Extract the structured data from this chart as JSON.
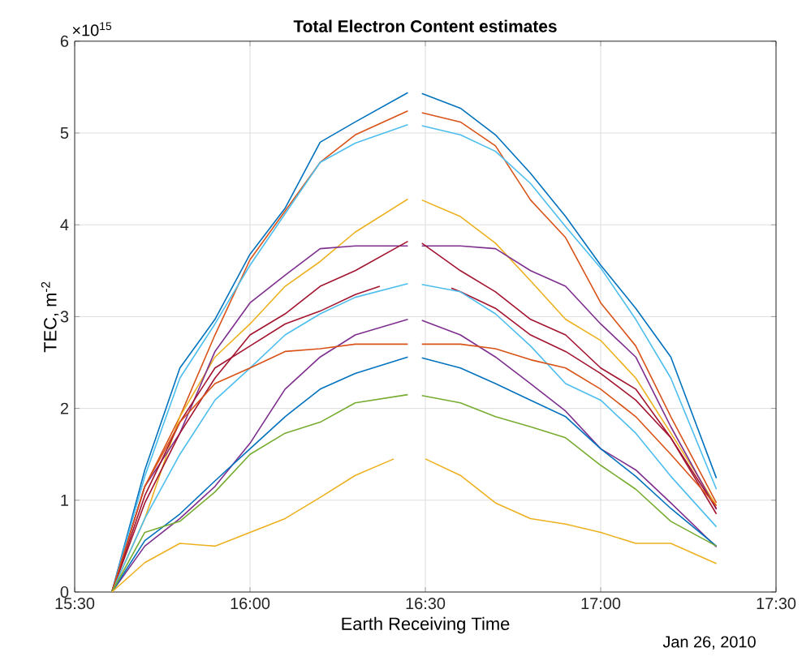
{
  "chart_data": {
    "type": "line",
    "title": "Total Electron Content estimates",
    "xlabel": "Earth Receiving Time",
    "ylabel": "TEC, m$^{-2}$",
    "annotations": [
      "×10$^{15}$",
      "Jan 26, 2010"
    ],
    "x": [
      15.606,
      15.7,
      15.8,
      15.9,
      16.0,
      16.1,
      16.2,
      16.3,
      16.45,
      16.47,
      16.49,
      16.6,
      16.7,
      16.8,
      16.9,
      17.0,
      17.1,
      17.2,
      17.33
    ],
    "xlim": [
      15.5,
      17.5
    ],
    "xticks": [
      {
        "value": 15.5,
        "label": "15:30"
      },
      {
        "value": 16.0,
        "label": "16:00"
      },
      {
        "value": 16.5,
        "label": "16:30"
      },
      {
        "value": 17.0,
        "label": "17:00"
      },
      {
        "value": 17.5,
        "label": "17:30"
      }
    ],
    "ylim": [
      0,
      6
    ],
    "yticks": [
      0,
      1,
      2,
      3,
      4,
      5,
      6
    ],
    "grid": true,
    "series": [
      {
        "color": "#0072bd",
        "values": [
          0,
          1.33,
          2.44,
          2.97,
          3.68,
          4.18,
          4.9,
          5.12,
          5.44,
          null,
          5.43,
          5.27,
          4.98,
          4.56,
          4.09,
          3.56,
          3.09,
          2.56,
          1.24
        ]
      },
      {
        "color": "#d95319",
        "values": [
          0,
          1.15,
          1.91,
          2.8,
          3.62,
          4.15,
          4.68,
          4.98,
          5.24,
          null,
          5.22,
          5.12,
          4.86,
          4.27,
          3.86,
          3.15,
          2.68,
          1.91,
          0.97
        ]
      },
      {
        "color": "#4dbeee",
        "values": [
          0,
          1.26,
          2.33,
          2.92,
          3.56,
          4.12,
          4.68,
          4.89,
          5.09,
          null,
          5.08,
          4.98,
          4.8,
          4.45,
          3.98,
          3.53,
          2.97,
          2.33,
          1.12
        ]
      },
      {
        "color": "#edb120",
        "values": [
          0,
          0.8,
          1.91,
          2.56,
          2.92,
          3.33,
          3.6,
          3.92,
          4.28,
          null,
          4.27,
          4.09,
          3.8,
          3.39,
          2.97,
          2.74,
          2.33,
          1.73,
          0.94
        ]
      },
      {
        "color": "#7e2f8e",
        "values": [
          0,
          1.15,
          1.73,
          2.62,
          3.15,
          3.45,
          3.74,
          3.77,
          3.77,
          null,
          3.77,
          3.77,
          3.74,
          3.5,
          3.33,
          2.92,
          2.56,
          1.8,
          0.9
        ]
      },
      {
        "color": "#a2142f",
        "values": [
          0,
          0.97,
          1.73,
          2.33,
          2.8,
          3.03,
          3.33,
          3.5,
          3.82,
          null,
          3.8,
          3.5,
          3.27,
          2.97,
          2.8,
          2.44,
          2.21,
          1.68,
          0.91
        ]
      },
      {
        "color": "#a2142f",
        "x": [
          15.606,
          15.7,
          15.8,
          15.9,
          16.0,
          16.1,
          16.2,
          16.3,
          16.37,
          16.47,
          16.574,
          16.6,
          16.7,
          16.8,
          16.9,
          17.0,
          17.1,
          17.2,
          17.33
        ],
        "values": [
          0,
          1.05,
          1.85,
          2.44,
          2.68,
          2.92,
          3.06,
          3.24,
          3.33,
          null,
          3.31,
          3.27,
          3.09,
          2.8,
          2.62,
          2.38,
          2.09,
          1.68,
          0.85
        ]
      },
      {
        "color": "#4dbeee",
        "values": [
          0,
          0.8,
          1.5,
          2.09,
          2.44,
          2.8,
          3.03,
          3.21,
          3.36,
          null,
          3.35,
          3.27,
          3.03,
          2.68,
          2.27,
          2.09,
          1.73,
          1.26,
          0.71
        ]
      },
      {
        "color": "#7e2f8e",
        "values": [
          0,
          0.5,
          0.8,
          1.15,
          1.62,
          2.21,
          2.56,
          2.8,
          2.97,
          null,
          2.96,
          2.8,
          2.56,
          2.27,
          1.97,
          1.56,
          1.33,
          0.97,
          0.49
        ]
      },
      {
        "color": "#d95319",
        "values": [
          0,
          1.15,
          1.85,
          2.27,
          2.44,
          2.62,
          2.65,
          2.7,
          2.7,
          null,
          2.7,
          2.7,
          2.65,
          2.53,
          2.44,
          2.21,
          1.91,
          1.5,
          0.94
        ]
      },
      {
        "color": "#0072bd",
        "values": [
          0,
          0.56,
          0.85,
          1.21,
          1.56,
          1.91,
          2.21,
          2.38,
          2.56,
          null,
          2.55,
          2.44,
          2.27,
          2.09,
          1.91,
          1.56,
          1.26,
          0.91,
          0.5
        ]
      },
      {
        "color": "#77ac30",
        "values": [
          0,
          0.65,
          0.77,
          1.09,
          1.5,
          1.73,
          1.85,
          2.06,
          2.15,
          null,
          2.14,
          2.06,
          1.91,
          1.8,
          1.68,
          1.38,
          1.12,
          0.77,
          0.5
        ]
      },
      {
        "color": "#edb120",
        "x": [
          15.606,
          15.7,
          15.8,
          15.9,
          16.0,
          16.1,
          16.2,
          16.3,
          16.41,
          16.45,
          16.5,
          16.6,
          16.7,
          16.8,
          16.9,
          17.0,
          17.1,
          17.2,
          17.33
        ],
        "values": [
          0,
          0.32,
          0.53,
          0.5,
          0.65,
          0.8,
          1.03,
          1.27,
          1.45,
          null,
          1.45,
          1.27,
          0.97,
          0.8,
          0.74,
          0.65,
          0.53,
          0.53,
          0.31
        ]
      }
    ]
  }
}
